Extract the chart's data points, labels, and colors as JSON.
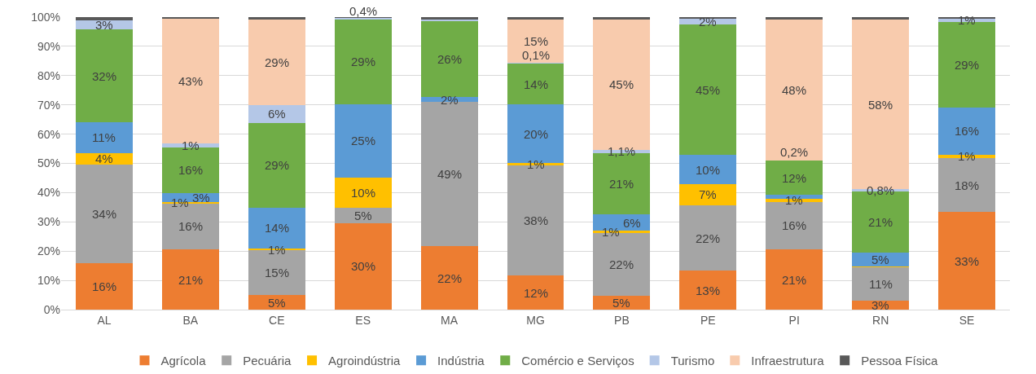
{
  "chart_data": {
    "type": "bar",
    "stacked": true,
    "categories": [
      "AL",
      "BA",
      "CE",
      "ES",
      "MA",
      "MG",
      "PB",
      "PE",
      "PI",
      "RN",
      "SE"
    ],
    "ylim": [
      0,
      100
    ],
    "yticks": [
      {
        "value": 0,
        "label": "0%"
      },
      {
        "value": 10,
        "label": "10%"
      },
      {
        "value": 20,
        "label": "20%"
      },
      {
        "value": 30,
        "label": "30%"
      },
      {
        "value": 40,
        "label": "40%"
      },
      {
        "value": 50,
        "label": "50%"
      },
      {
        "value": 60,
        "label": "60%"
      },
      {
        "value": 70,
        "label": "70%"
      },
      {
        "value": 80,
        "label": "80%"
      },
      {
        "value": 90,
        "label": "90%"
      },
      {
        "value": 100,
        "label": "100%"
      }
    ],
    "grid": "y",
    "legend": "bottom",
    "series": [
      {
        "name": "Agrícola",
        "color": "#ed7d31",
        "values": [
          15.8,
          20.6,
          4.9,
          29.6,
          21.6,
          11.6,
          4.6,
          13.3,
          20.6,
          3.1,
          33.4
        ],
        "value_labels": [
          "16%",
          "21%",
          "5%",
          "30%",
          "22%",
          "12%",
          "5%",
          "13%",
          "21%",
          "3%",
          "33%"
        ]
      },
      {
        "name": "Pecuária",
        "color": "#a5a5a5",
        "values": [
          33.8,
          15.7,
          15.3,
          5.3,
          49.4,
          37.8,
          21.7,
          22.3,
          16.2,
          11.4,
          18.4
        ],
        "value_labels": [
          "34%",
          "16%",
          "15%",
          "5%",
          "49%",
          "38%",
          "22%",
          "22%",
          "16%",
          "11%",
          "18%"
        ]
      },
      {
        "name": "Agroindústria",
        "color": "#ffc000",
        "values": [
          3.9,
          0.6,
          0.7,
          10.3,
          null,
          0.7,
          0.6,
          7.4,
          1.2,
          0.4,
          1.2
        ],
        "value_labels": [
          "4%",
          "1%",
          "1%",
          "10%",
          null,
          "1%",
          "1%",
          "7%",
          "1%",
          null,
          "1%"
        ]
      },
      {
        "name": "Indústria",
        "color": "#5b9bd5",
        "values": [
          10.6,
          3.0,
          14.0,
          25.1,
          1.7,
          20.0,
          5.7,
          9.8,
          1.3,
          4.7,
          16.2
        ],
        "value_labels": [
          "11%",
          "3%",
          "14%",
          "25%",
          "2%",
          "20%",
          "6%",
          "10%",
          null,
          "5%",
          "16%"
        ]
      },
      {
        "name": "Comércio e Serviços",
        "color": "#70ad47",
        "values": [
          31.6,
          15.6,
          29.0,
          28.9,
          25.8,
          14.1,
          20.9,
          44.7,
          11.6,
          20.7,
          29.2
        ],
        "value_labels": [
          "32%",
          "16%",
          "29%",
          "29%",
          "26%",
          "14%",
          "21%",
          "45%",
          "12%",
          "21%",
          "29%"
        ]
      },
      {
        "name": "Turismo",
        "color": "#b4c7e7",
        "values": [
          3.3,
          1.4,
          6.0,
          0.4,
          0.7,
          0.1,
          1.1,
          1.9,
          0.2,
          0.8,
          1.0
        ],
        "value_labels": [
          "3%",
          "1%",
          "6%",
          "0,4%",
          null,
          "0,1%",
          "1,1%",
          "2%",
          "0,2%",
          "0,8%",
          "1%"
        ]
      },
      {
        "name": "Infraestrutura",
        "color": "#f8cbad",
        "values": [
          null,
          42.6,
          29.3,
          null,
          null,
          14.9,
          44.6,
          null,
          48.1,
          58.0,
          null
        ],
        "value_labels": [
          null,
          "43%",
          "29%",
          null,
          null,
          "15%",
          "45%",
          null,
          "48%",
          "58%",
          null
        ]
      },
      {
        "name": "Pessoa Física",
        "color": "#595959",
        "values": [
          1.0,
          0.5,
          0.8,
          0.4,
          0.8,
          0.8,
          0.8,
          0.6,
          0.8,
          0.9,
          0.6
        ],
        "value_labels": [
          null,
          null,
          null,
          null,
          null,
          null,
          null,
          null,
          null,
          null,
          null
        ]
      }
    ]
  }
}
